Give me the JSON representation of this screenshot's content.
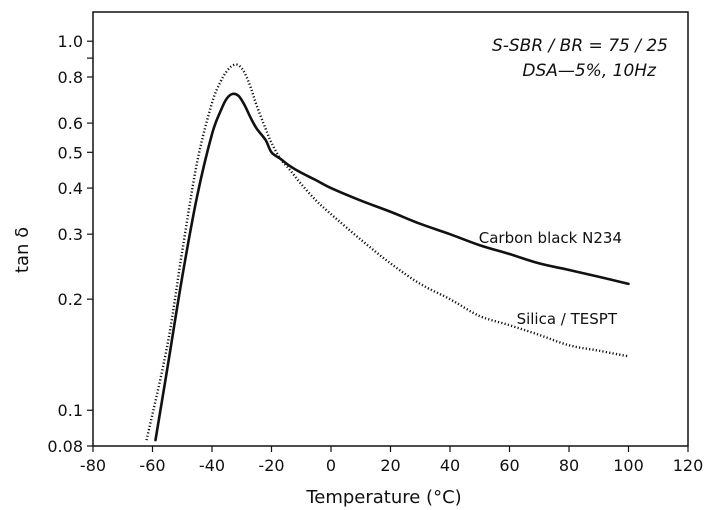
{
  "chart_data": {
    "type": "line",
    "title": "",
    "xlabel": "Temperature (°C)",
    "ylabel": "tan δ",
    "xlim": [
      -80,
      120
    ],
    "ylim": [
      0.08,
      1.2
    ],
    "yscale": "log",
    "x_ticks": [
      -80,
      -60,
      -40,
      -20,
      0,
      20,
      40,
      60,
      80,
      100,
      120
    ],
    "y_ticks_labeled": [
      "0.08",
      "0.1",
      "0.2",
      "0.3",
      "0.4",
      "0.5",
      "0.6",
      "0.8",
      "1.0"
    ],
    "y_ticks_unlabeled": [
      0.9
    ],
    "grid": false,
    "legend": "none",
    "annotations": [
      "S-SBR / BR = 75 / 25",
      "DSA—5%, 10Hz"
    ],
    "series": [
      {
        "name": "Carbon black N234",
        "style": "solid",
        "color": "#111111",
        "x": [
          -59,
          -55,
          -50,
          -45,
          -40,
          -37,
          -35,
          -33,
          -31,
          -29,
          -27,
          -25,
          -22,
          -20,
          -17,
          -14,
          -10,
          -5,
          0,
          10,
          20,
          30,
          40,
          50,
          60,
          70,
          80,
          90,
          100
        ],
        "y": [
          0.083,
          0.13,
          0.23,
          0.38,
          0.56,
          0.65,
          0.7,
          0.72,
          0.71,
          0.67,
          0.62,
          0.58,
          0.54,
          0.5,
          0.48,
          0.46,
          0.44,
          0.42,
          0.4,
          0.37,
          0.345,
          0.32,
          0.3,
          0.28,
          0.265,
          0.25,
          0.24,
          0.23,
          0.22
        ]
      },
      {
        "name": "Silica / TESPT",
        "style": "dotted",
        "color": "#111111",
        "x": [
          -62,
          -55,
          -50,
          -45,
          -40,
          -37,
          -35,
          -33,
          -31,
          -29,
          -27,
          -25,
          -22,
          -20,
          -17,
          -14,
          -10,
          -5,
          0,
          10,
          20,
          30,
          40,
          50,
          60,
          70,
          80,
          90,
          100
        ],
        "y": [
          0.083,
          0.15,
          0.27,
          0.47,
          0.68,
          0.78,
          0.83,
          0.86,
          0.86,
          0.82,
          0.75,
          0.67,
          0.58,
          0.53,
          0.48,
          0.45,
          0.41,
          0.37,
          0.34,
          0.29,
          0.25,
          0.22,
          0.2,
          0.18,
          0.17,
          0.16,
          0.15,
          0.145,
          0.14
        ]
      }
    ]
  }
}
